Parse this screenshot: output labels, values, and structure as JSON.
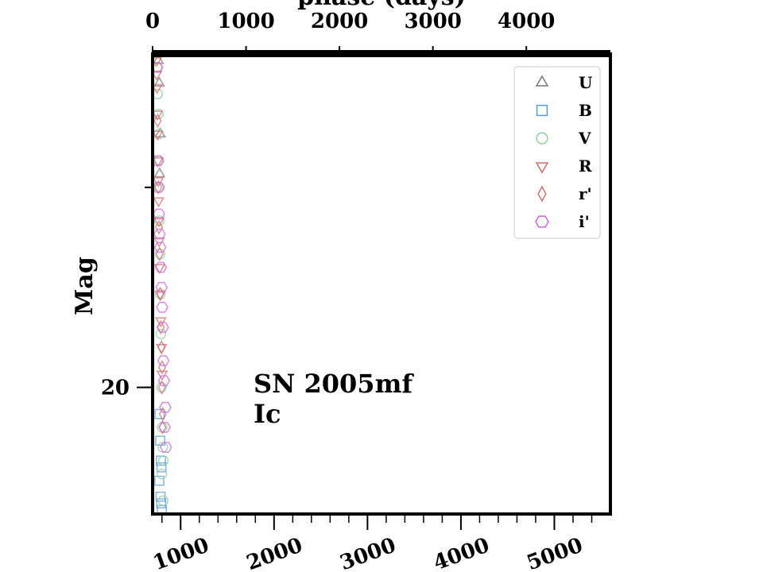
{
  "chart_data": {
    "type": "scatter",
    "xlabel_top": "phase (days)",
    "ylabel": "Mag",
    "top_axis": {
      "ticks": [
        0,
        1000,
        2000,
        3000,
        4000
      ],
      "range": [
        0,
        4900
      ]
    },
    "bottom_axis": {
      "ticks": [
        1000,
        2000,
        3000,
        4000,
        5000
      ],
      "range": [
        700,
        5600
      ]
    },
    "y_axis": {
      "ticks": [
        20
      ],
      "range": [
        17.5,
        20.95
      ],
      "inverted": true
    },
    "annotation": {
      "line1": "SN 2005mf",
      "line2": "Ic"
    },
    "legend": {
      "position": "top-right"
    },
    "series": [
      {
        "name": "U",
        "marker": "triangle-up",
        "color": "#777777",
        "points": [
          [
            40,
            17.55
          ],
          [
            55,
            17.72
          ],
          [
            70,
            18.1
          ],
          [
            60,
            18.4
          ]
        ]
      },
      {
        "name": "B",
        "marker": "square",
        "color": "#5b9bd5",
        "points": [
          [
            60,
            20.2
          ],
          [
            70,
            20.4
          ],
          [
            80,
            20.55
          ],
          [
            90,
            20.6
          ],
          [
            55,
            20.7
          ],
          [
            75,
            20.82
          ],
          [
            85,
            20.87
          ],
          [
            95,
            20.92
          ]
        ]
      },
      {
        "name": "V",
        "marker": "circle",
        "color": "#8fcf9f",
        "points": [
          [
            20,
            17.6
          ],
          [
            30,
            17.8
          ],
          [
            40,
            17.95
          ],
          [
            45,
            18.1
          ],
          [
            50,
            18.3
          ],
          [
            60,
            18.5
          ],
          [
            55,
            18.75
          ],
          [
            65,
            19.0
          ],
          [
            70,
            19.3
          ],
          [
            80,
            19.6
          ],
          [
            90,
            20.0
          ],
          [
            100,
            20.3
          ],
          [
            110,
            20.45
          ],
          [
            120,
            20.55
          ],
          [
            95,
            20.65
          ],
          [
            115,
            20.85
          ]
        ]
      },
      {
        "name": "R",
        "marker": "triangle-down",
        "color": "#d46a6a",
        "points": [
          [
            10,
            17.55
          ],
          [
            15,
            17.65
          ],
          [
            20,
            17.75
          ],
          [
            25,
            17.95
          ],
          [
            30,
            18.1
          ],
          [
            35,
            18.3
          ],
          [
            40,
            18.45
          ],
          [
            45,
            18.6
          ],
          [
            50,
            18.75
          ],
          [
            55,
            18.9
          ],
          [
            60,
            19.1
          ],
          [
            70,
            19.3
          ],
          [
            80,
            19.5
          ],
          [
            90,
            19.7
          ],
          [
            100,
            19.9
          ]
        ]
      },
      {
        "name": "r'",
        "marker": "diamond",
        "color": "#c97070",
        "points": [
          [
            30,
            18.0
          ],
          [
            40,
            18.5
          ],
          [
            50,
            18.8
          ],
          [
            60,
            19.0
          ],
          [
            70,
            19.3
          ],
          [
            80,
            19.55
          ],
          [
            90,
            19.7
          ],
          [
            100,
            19.85
          ],
          [
            95,
            20.0
          ],
          [
            110,
            20.2
          ],
          [
            105,
            20.3
          ]
        ]
      },
      {
        "name": "i'",
        "marker": "hexagon",
        "color": "#cc66d9",
        "points": [
          [
            20,
            17.6
          ],
          [
            30,
            18.3
          ],
          [
            40,
            18.5
          ],
          [
            50,
            18.7
          ],
          [
            60,
            18.85
          ],
          [
            70,
            18.95
          ],
          [
            80,
            19.1
          ],
          [
            90,
            19.25
          ],
          [
            100,
            19.4
          ],
          [
            110,
            19.55
          ],
          [
            120,
            19.8
          ],
          [
            130,
            19.95
          ],
          [
            150,
            20.15
          ],
          [
            140,
            20.3
          ],
          [
            160,
            20.45
          ]
        ]
      }
    ]
  }
}
